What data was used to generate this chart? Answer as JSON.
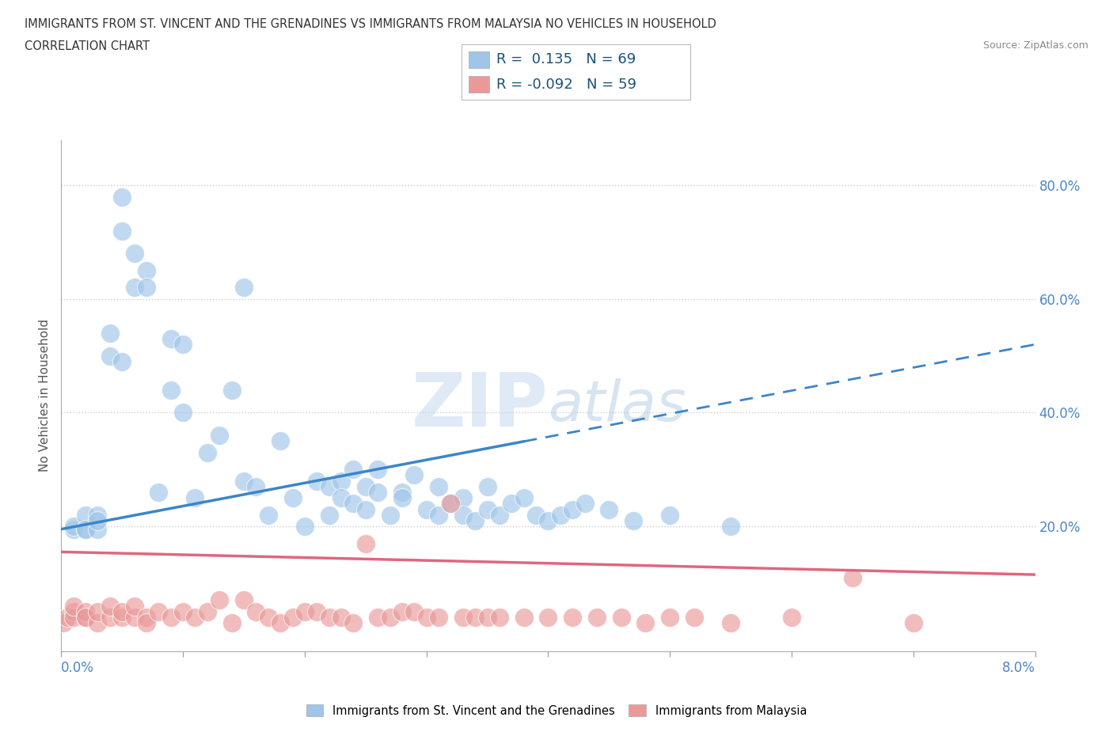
{
  "title_line1": "IMMIGRANTS FROM ST. VINCENT AND THE GRENADINES VS IMMIGRANTS FROM MALAYSIA NO VEHICLES IN HOUSEHOLD",
  "title_line2": "CORRELATION CHART",
  "source_text": "Source: ZipAtlas.com",
  "y_tick_labels": [
    "20.0%",
    "40.0%",
    "60.0%",
    "80.0%"
  ],
  "y_tick_values": [
    0.2,
    0.4,
    0.6,
    0.8
  ],
  "x_tick_values": [
    0.0,
    0.01,
    0.02,
    0.03,
    0.04,
    0.05,
    0.06,
    0.07,
    0.08
  ],
  "xlim": [
    0.0,
    0.08
  ],
  "ylim": [
    -0.02,
    0.88
  ],
  "color_blue": "#9fc5e8",
  "color_pink": "#ea9999",
  "color_trendline_blue": "#3d85c8",
  "color_trendline_pink": "#e06680",
  "R_blue": 0.135,
  "N_blue": 69,
  "R_pink": -0.092,
  "N_pink": 59,
  "legend_label_blue": "Immigrants from St. Vincent and the Grenadines",
  "legend_label_pink": "Immigrants from Malaysia",
  "ylabel": "No Vehicles in Household",
  "watermark": "ZIPatlas",
  "sv_x": [
    0.001,
    0.001,
    0.002,
    0.002,
    0.002,
    0.003,
    0.003,
    0.003,
    0.004,
    0.004,
    0.005,
    0.005,
    0.005,
    0.006,
    0.006,
    0.007,
    0.007,
    0.008,
    0.009,
    0.009,
    0.01,
    0.01,
    0.011,
    0.012,
    0.013,
    0.014,
    0.015,
    0.015,
    0.016,
    0.017,
    0.018,
    0.019,
    0.02,
    0.021,
    0.022,
    0.022,
    0.023,
    0.023,
    0.024,
    0.024,
    0.025,
    0.025,
    0.026,
    0.026,
    0.027,
    0.028,
    0.028,
    0.029,
    0.03,
    0.031,
    0.031,
    0.032,
    0.033,
    0.033,
    0.034,
    0.035,
    0.035,
    0.036,
    0.037,
    0.038,
    0.039,
    0.04,
    0.041,
    0.042,
    0.043,
    0.045,
    0.047,
    0.05,
    0.055
  ],
  "sv_y": [
    0.195,
    0.2,
    0.195,
    0.22,
    0.195,
    0.195,
    0.22,
    0.21,
    0.5,
    0.54,
    0.49,
    0.72,
    0.78,
    0.68,
    0.62,
    0.65,
    0.62,
    0.26,
    0.44,
    0.53,
    0.4,
    0.52,
    0.25,
    0.33,
    0.36,
    0.44,
    0.62,
    0.28,
    0.27,
    0.22,
    0.35,
    0.25,
    0.2,
    0.28,
    0.22,
    0.27,
    0.28,
    0.25,
    0.3,
    0.24,
    0.23,
    0.27,
    0.26,
    0.3,
    0.22,
    0.26,
    0.25,
    0.29,
    0.23,
    0.27,
    0.22,
    0.24,
    0.25,
    0.22,
    0.21,
    0.23,
    0.27,
    0.22,
    0.24,
    0.25,
    0.22,
    0.21,
    0.22,
    0.23,
    0.24,
    0.23,
    0.21,
    0.22,
    0.2
  ],
  "my_x": [
    0.0002,
    0.0005,
    0.001,
    0.001,
    0.001,
    0.002,
    0.002,
    0.002,
    0.003,
    0.003,
    0.004,
    0.004,
    0.005,
    0.005,
    0.006,
    0.006,
    0.007,
    0.007,
    0.008,
    0.009,
    0.01,
    0.011,
    0.012,
    0.013,
    0.014,
    0.015,
    0.016,
    0.017,
    0.018,
    0.019,
    0.02,
    0.021,
    0.022,
    0.023,
    0.024,
    0.025,
    0.026,
    0.027,
    0.028,
    0.029,
    0.03,
    0.031,
    0.032,
    0.033,
    0.034,
    0.035,
    0.036,
    0.038,
    0.04,
    0.042,
    0.044,
    0.046,
    0.048,
    0.05,
    0.052,
    0.055,
    0.06,
    0.065,
    0.07
  ],
  "my_y": [
    0.03,
    0.04,
    0.05,
    0.04,
    0.06,
    0.04,
    0.05,
    0.04,
    0.03,
    0.05,
    0.04,
    0.06,
    0.04,
    0.05,
    0.04,
    0.06,
    0.04,
    0.03,
    0.05,
    0.04,
    0.05,
    0.04,
    0.05,
    0.07,
    0.03,
    0.07,
    0.05,
    0.04,
    0.03,
    0.04,
    0.05,
    0.05,
    0.04,
    0.04,
    0.03,
    0.17,
    0.04,
    0.04,
    0.05,
    0.05,
    0.04,
    0.04,
    0.24,
    0.04,
    0.04,
    0.04,
    0.04,
    0.04,
    0.04,
    0.04,
    0.04,
    0.04,
    0.03,
    0.04,
    0.04,
    0.03,
    0.04,
    0.11,
    0.03
  ],
  "trendline_sv_x0": 0.0,
  "trendline_sv_y0": 0.195,
  "trendline_sv_x1": 0.08,
  "trendline_sv_y1": 0.52,
  "trendline_sv_solid_x1": 0.038,
  "trendline_my_x0": 0.0,
  "trendline_my_y0": 0.155,
  "trendline_my_x1": 0.08,
  "trendline_my_y1": 0.115
}
